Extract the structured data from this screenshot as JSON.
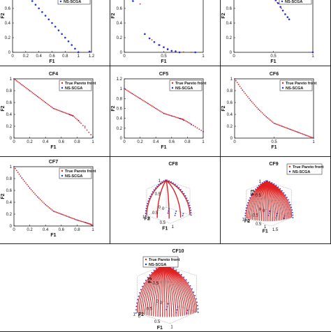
{
  "legend": {
    "true_front": "True Pareto front",
    "ns_scga": "NS-SCGA"
  },
  "colors": {
    "true_front": "#e02020",
    "ns_scga": "#1a2fd6",
    "axis": "#111111"
  },
  "chart_data": [
    {
      "id": "CF1",
      "type": "scatter",
      "title": "",
      "xlabel": "F1",
      "ylabel": "F2",
      "xlim": [
        0,
        1.2
      ],
      "ylim": [
        0,
        1
      ],
      "xticks": [
        "0",
        "0.2",
        "0.4",
        "0.6",
        "0.8",
        "1",
        "1.2"
      ],
      "yticks": [
        "0",
        "0.2",
        "0.4",
        "0.6",
        "0.8",
        "1"
      ],
      "legend_ns": "NS-SCGA",
      "true_front": [
        [
          0,
          1
        ],
        [
          0.05,
          0.95
        ],
        [
          0.1,
          0.9
        ],
        [
          0.15,
          0.85
        ],
        [
          0.2,
          0.8
        ],
        [
          0.25,
          0.75
        ],
        [
          0.3,
          0.7
        ],
        [
          0.35,
          0.65
        ],
        [
          0.4,
          0.6
        ],
        [
          0.45,
          0.55
        ],
        [
          0.5,
          0.5
        ],
        [
          0.55,
          0.45
        ],
        [
          0.6,
          0.4
        ],
        [
          0.65,
          0.35
        ],
        [
          0.7,
          0.3
        ],
        [
          0.75,
          0.25
        ],
        [
          0.8,
          0.2
        ],
        [
          0.85,
          0.15
        ],
        [
          0.9,
          0.1
        ],
        [
          0.95,
          0.05
        ],
        [
          1,
          0
        ]
      ],
      "ns_scga": [
        [
          0,
          1
        ],
        [
          0.05,
          0.95
        ],
        [
          0.1,
          0.9
        ],
        [
          0.15,
          0.85
        ],
        [
          0.2,
          0.8
        ],
        [
          0.25,
          0.75
        ],
        [
          0.3,
          0.7
        ],
        [
          0.35,
          0.65
        ],
        [
          0.4,
          0.6
        ],
        [
          0.45,
          0.55
        ],
        [
          0.5,
          0.5
        ],
        [
          0.55,
          0.45
        ],
        [
          0.6,
          0.4
        ],
        [
          0.65,
          0.35
        ],
        [
          0.7,
          0.3
        ],
        [
          0.75,
          0.25
        ],
        [
          0.8,
          0.2
        ],
        [
          0.85,
          0.15
        ],
        [
          0.9,
          0.1
        ],
        [
          0.95,
          0.05
        ],
        [
          1,
          0
        ],
        [
          1.17,
          0.01
        ]
      ]
    },
    {
      "id": "CF2",
      "type": "scatter",
      "title": "",
      "xlabel": "F1",
      "ylabel": "F2",
      "xlim": [
        0,
        1
      ],
      "ylim": [
        0,
        1
      ],
      "xticks": [
        "0",
        "0.5",
        "1"
      ],
      "yticks": [
        "0",
        "0.2",
        "0.4",
        "0.6",
        "0.8",
        "1"
      ],
      "legend_ns": "",
      "true_front": [
        [
          0,
          1
        ],
        [
          0.03,
          0.9
        ],
        [
          0.06,
          0.81
        ],
        [
          0.1,
          0.72
        ],
        [
          0.2,
          0.66
        ],
        [
          0.26,
          0.25
        ],
        [
          0.35,
          0.17
        ],
        [
          0.45,
          0.1
        ],
        [
          0.55,
          0.05
        ],
        [
          0.65,
          0.02
        ],
        [
          0.75,
          0.005
        ],
        [
          0.85,
          0.0
        ]
      ],
      "ns_scga": [
        [
          0.01,
          0.98
        ],
        [
          0.03,
          0.9
        ],
        [
          0.05,
          0.84
        ],
        [
          0.07,
          0.78
        ],
        [
          0.09,
          0.74
        ],
        [
          0.11,
          0.7
        ],
        [
          0.26,
          0.25
        ],
        [
          0.32,
          0.19
        ],
        [
          0.38,
          0.14
        ],
        [
          0.44,
          0.1
        ],
        [
          0.5,
          0.07
        ],
        [
          0.55,
          0.04
        ],
        [
          0.6,
          0.02
        ],
        [
          0.65,
          0.01
        ],
        [
          0.7,
          0.0
        ],
        [
          0.9,
          0.0
        ]
      ]
    },
    {
      "id": "CF3",
      "type": "scatter",
      "title": "",
      "xlabel": "F1",
      "ylabel": "F2",
      "xlim": [
        0,
        1
      ],
      "ylim": [
        0,
        1
      ],
      "xticks": [
        "0",
        "0.5",
        "1"
      ],
      "yticks": [
        "0",
        "0.2",
        "0.4",
        "0.6",
        "0.8",
        "1"
      ],
      "legend_ns": "NS-SCGA",
      "true_front": [
        [
          0.5,
          0.75
        ],
        [
          0.55,
          0.68
        ],
        [
          0.6,
          0.6
        ],
        [
          0.65,
          0.52
        ],
        [
          0.7,
          0.45
        ]
      ],
      "ns_scga": [
        [
          0.5,
          0.75
        ],
        [
          0.53,
          0.71
        ],
        [
          0.56,
          0.67
        ],
        [
          0.59,
          0.62
        ],
        [
          0.62,
          0.57
        ],
        [
          0.65,
          0.52
        ],
        [
          0.68,
          0.48
        ],
        [
          0.7,
          0.45
        ],
        [
          1.0,
          0.0
        ]
      ]
    },
    {
      "id": "CF4",
      "type": "scatter",
      "title": "CF4",
      "xlabel": "F1",
      "ylabel": "F2",
      "xlim": [
        0,
        1
      ],
      "ylim": [
        0,
        1
      ],
      "xticks": [
        "0",
        "0.2",
        "0.4",
        "0.6",
        "0.8",
        "1"
      ],
      "yticks": [
        "0",
        "0.2",
        "0.4",
        "0.6",
        "0.8",
        "1"
      ],
      "legend_ns": "NS-SCGA",
      "true_front": [
        [
          0,
          1
        ],
        [
          0.1,
          0.9
        ],
        [
          0.2,
          0.8
        ],
        [
          0.3,
          0.7
        ],
        [
          0.4,
          0.6
        ],
        [
          0.5,
          0.5
        ],
        [
          0.6,
          0.45
        ],
        [
          0.7,
          0.4
        ],
        [
          0.75,
          0.375
        ],
        [
          0.85,
          0.25
        ],
        [
          1,
          0.02
        ]
      ],
      "ns_scga": [
        [
          0,
          1
        ],
        [
          0.1,
          0.9
        ],
        [
          0.2,
          0.8
        ],
        [
          0.3,
          0.7
        ],
        [
          0.4,
          0.6
        ],
        [
          0.5,
          0.5
        ],
        [
          0.6,
          0.45
        ],
        [
          0.7,
          0.4
        ],
        [
          0.75,
          0.37
        ],
        [
          0.82,
          0.3
        ],
        [
          0.9,
          0.2
        ],
        [
          1,
          0.02
        ]
      ]
    },
    {
      "id": "CF5",
      "type": "scatter",
      "title": "CF5",
      "xlabel": "F1",
      "ylabel": "F2",
      "xlim": [
        0,
        1
      ],
      "ylim": [
        0,
        1.2
      ],
      "xticks": [
        "0",
        "0.2",
        "0.4",
        "0.6",
        "0.8",
        "1"
      ],
      "yticks": [
        "0",
        "0.2",
        "0.4",
        "0.6",
        "0.8",
        "1",
        "1.2"
      ],
      "legend_ns": "NS-SCGA",
      "true_front": [
        [
          0,
          1
        ],
        [
          0.1,
          0.9
        ],
        [
          0.2,
          0.8
        ],
        [
          0.3,
          0.7
        ],
        [
          0.4,
          0.6
        ],
        [
          0.5,
          0.5
        ],
        [
          0.6,
          0.45
        ],
        [
          0.7,
          0.4
        ],
        [
          0.75,
          0.375
        ],
        [
          0.85,
          0.28
        ],
        [
          1,
          0.13
        ]
      ],
      "ns_scga": [
        [
          0,
          1
        ],
        [
          0.1,
          0.9
        ],
        [
          0.2,
          0.8
        ],
        [
          0.3,
          0.7
        ],
        [
          0.4,
          0.6
        ],
        [
          0.5,
          0.5
        ],
        [
          0.6,
          0.45
        ],
        [
          0.7,
          0.4
        ],
        [
          0.75,
          0.36
        ],
        [
          0.85,
          0.27
        ],
        [
          1,
          0.13
        ]
      ]
    },
    {
      "id": "CF6",
      "type": "scatter",
      "title": "CF6",
      "xlabel": "F1",
      "ylabel": "F2",
      "xlim": [
        0,
        1
      ],
      "ylim": [
        0,
        1
      ],
      "xticks": [
        "0",
        "0.5",
        "1"
      ],
      "yticks": [
        "0",
        "0.2",
        "0.4",
        "0.6",
        "0.8",
        "1"
      ],
      "legend_ns": "NS-SCGA",
      "true_front": [
        [
          0,
          1
        ],
        [
          0.1,
          0.81
        ],
        [
          0.2,
          0.64
        ],
        [
          0.3,
          0.49
        ],
        [
          0.4,
          0.36
        ],
        [
          0.5,
          0.25
        ],
        [
          0.6,
          0.2
        ],
        [
          0.7,
          0.15
        ],
        [
          0.8,
          0.1
        ],
        [
          0.9,
          0.05
        ],
        [
          1,
          0.0
        ]
      ],
      "ns_scga": [
        [
          0,
          1
        ],
        [
          0.1,
          0.81
        ],
        [
          0.2,
          0.64
        ],
        [
          0.3,
          0.49
        ],
        [
          0.4,
          0.36
        ],
        [
          0.5,
          0.25
        ],
        [
          0.6,
          0.2
        ],
        [
          0.7,
          0.15
        ],
        [
          0.8,
          0.1
        ],
        [
          0.9,
          0.05
        ],
        [
          1,
          0.0
        ]
      ]
    },
    {
      "id": "CF7",
      "type": "scatter",
      "title": "CF7",
      "xlabel": "F1",
      "ylabel": "F2",
      "xlim": [
        0,
        1
      ],
      "ylim": [
        0,
        1
      ],
      "xticks": [
        "0",
        "0.2",
        "0.4",
        "0.6",
        "0.8",
        "1"
      ],
      "yticks": [
        "0",
        "0.2",
        "0.4",
        "0.6",
        "0.8",
        "1"
      ],
      "legend_ns": "NS-SCGA",
      "true_front": [
        [
          0,
          1
        ],
        [
          0.1,
          0.81
        ],
        [
          0.2,
          0.64
        ],
        [
          0.3,
          0.49
        ],
        [
          0.4,
          0.36
        ],
        [
          0.5,
          0.25
        ],
        [
          0.6,
          0.2
        ],
        [
          0.7,
          0.15
        ],
        [
          0.8,
          0.1
        ],
        [
          0.9,
          0.06
        ],
        [
          0.97,
          0.03
        ],
        [
          1,
          0.0
        ]
      ],
      "ns_scga": [
        [
          0,
          1
        ],
        [
          0.1,
          0.81
        ],
        [
          0.2,
          0.64
        ],
        [
          0.3,
          0.49
        ],
        [
          0.4,
          0.36
        ],
        [
          0.5,
          0.25
        ],
        [
          0.6,
          0.2
        ],
        [
          0.7,
          0.15
        ],
        [
          0.8,
          0.1
        ],
        [
          0.9,
          0.06
        ],
        [
          1,
          0.0
        ]
      ]
    },
    {
      "id": "CF8",
      "type": "scatter3d",
      "title": "CF8",
      "xlabel": "F1",
      "ylabel": "F2",
      "zlabel": "",
      "xticks": [
        "0",
        "0.5",
        "1"
      ],
      "yticks": [
        "1",
        "0.5",
        "0"
      ],
      "zticks": [
        "0",
        "0.5",
        "1"
      ],
      "legend_ns": ""
    },
    {
      "id": "CF9",
      "type": "scatter3d",
      "title": "CF9",
      "xlabel": "F1",
      "ylabel": "F2",
      "zlabel": "F3",
      "xticks": [
        "0",
        "0.5",
        "1",
        "1.5"
      ],
      "yticks": [
        "1",
        "0.5",
        "0"
      ],
      "zticks": [
        "0",
        "0.5",
        "1"
      ],
      "legend_ns": "NS-SCGA"
    },
    {
      "id": "CF10",
      "type": "scatter3d",
      "title": "CF10",
      "xlabel": "F1",
      "ylabel": "F2",
      "zlabel": "F3",
      "xticks": [
        "0",
        "0.5",
        "1"
      ],
      "yticks": [
        "1",
        "0.5",
        "0"
      ],
      "zticks": [
        "0",
        "0.5",
        "1"
      ],
      "legend_ns": "NS-SCGA"
    }
  ]
}
